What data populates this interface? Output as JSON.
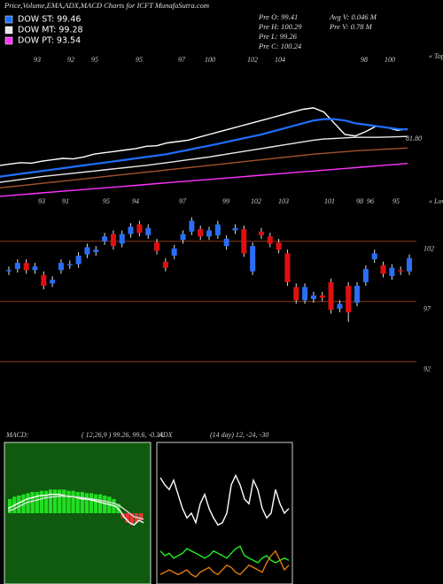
{
  "header": {
    "title": "Price,Volume,EMA,ADX,MACD Charts for ICFT MunafaSutra.com",
    "info": [
      "Pre  O: 99.41",
      "Pre  H: 100.29",
      "Pre  L: 99.26",
      "Pre  C: 100.24",
      "Avg V: 0.046  M",
      "Pre  V: 0.78  M"
    ]
  },
  "chart_data": [
    {
      "type": "line",
      "series": [
        {
          "color": "#ffffff",
          "values": [
            70,
            70.5,
            71,
            70.8,
            71.5,
            72,
            72.5,
            72.3,
            73,
            74,
            74.5,
            75,
            75.5,
            76,
            76.8,
            77,
            78,
            78.5,
            79,
            80,
            81,
            82,
            83,
            84,
            85,
            86,
            87,
            88,
            89,
            90,
            90.5,
            89,
            85,
            81,
            80.5,
            82,
            84,
            83.5,
            82.5,
            83
          ]
        },
        {
          "name": "DOW ST: 99.46",
          "color": "#1f6fff",
          "values": [
            66,
            66.5,
            67,
            67.5,
            68,
            68.5,
            69,
            69.5,
            70,
            70.5,
            71,
            71.5,
            72,
            72.5,
            73,
            73.5,
            74,
            74.8,
            75.5,
            76.3,
            77,
            77.8,
            78.6,
            79.4,
            80.2,
            81,
            82,
            83,
            84,
            85,
            86,
            86.5,
            86.5,
            86,
            85,
            84.5,
            84,
            83.5,
            83,
            82.8
          ]
        },
        {
          "name": "DOW MT: 99.28",
          "color": "#e8e8e8",
          "values": [
            64,
            64.5,
            65,
            65.5,
            66,
            66.4,
            66.8,
            67.2,
            67.6,
            68,
            68.4,
            68.8,
            69.2,
            69.6,
            70,
            70.5,
            71,
            71.5,
            72,
            72.5,
            73,
            73.6,
            74.2,
            74.8,
            75.4,
            76,
            76.6,
            77.2,
            77.8,
            78.4,
            79,
            79.4,
            79.6,
            79.8,
            80,
            80,
            80,
            80.1,
            80.2,
            80.3
          ]
        },
        {
          "color": "#a0522d",
          "values": [
            62,
            62.4,
            62.8,
            63.2,
            63.6,
            64,
            64.4,
            64.8,
            65.2,
            65.6,
            66,
            66.4,
            66.8,
            67.2,
            67.6,
            68,
            68.4,
            68.8,
            69.2,
            69.6,
            70,
            70.4,
            70.8,
            71.2,
            71.6,
            72,
            72.4,
            72.8,
            73.2,
            73.6,
            74,
            74.3,
            74.6,
            74.9,
            75.2,
            75.4,
            75.6,
            75.8,
            76,
            76.2
          ]
        },
        {
          "name": "DOW PT: 93.54",
          "color": "#ff33ff",
          "values": [
            59,
            59.3,
            59.6,
            59.9,
            60.2,
            60.5,
            60.8,
            61.1,
            61.4,
            61.7,
            62,
            62.3,
            62.6,
            62.9,
            63.2,
            63.5,
            63.8,
            64.1,
            64.4,
            64.7,
            65,
            65.3,
            65.6,
            65.9,
            66.2,
            66.5,
            66.8,
            67.1,
            67.4,
            67.7,
            68,
            68.3,
            68.6,
            68.9,
            69.2,
            69.5,
            69.8,
            70.1,
            70.4,
            70.7
          ]
        }
      ],
      "ylim": [
        58,
        110
      ],
      "price_label": "81.80",
      "tops_label": "« Tops",
      "lows_label": "« Lows",
      "top_labels": [
        93,
        92,
        95,
        95,
        97,
        100,
        102,
        104,
        98,
        100
      ],
      "low_labels": [
        93,
        91,
        95,
        94,
        97,
        99,
        102,
        103,
        101,
        98,
        96,
        95
      ]
    },
    {
      "type": "candlestick",
      "open": [
        99.5,
        99.7,
        100.2,
        99.6,
        99.2,
        98.5,
        99.6,
        100.0,
        100.1,
        100.9,
        101.1,
        102.0,
        102.6,
        101.8,
        102.6,
        103.4,
        102.5,
        101.9,
        100.3,
        100.8,
        102.1,
        102.8,
        103.0,
        102.4,
        102.5,
        101.6,
        102.9,
        103.0,
        99.5,
        102.8,
        102.4,
        101.9,
        101.0,
        98.2,
        97.1,
        97.2,
        97.5,
        98.6,
        96.4,
        98.3,
        96.9,
        98.6,
        100.5,
        100.0,
        99.1,
        99.6,
        99.5
      ],
      "high": [
        99.9,
        100.5,
        100.5,
        100.2,
        99.5,
        99.1,
        100.5,
        100.4,
        101.1,
        101.8,
        101.6,
        102.7,
        102.9,
        102.9,
        103.5,
        103.7,
        103.4,
        102.2,
        100.6,
        101.7,
        102.9,
        104.0,
        103.3,
        103.2,
        103.7,
        102.5,
        103.4,
        103.3,
        101.9,
        103.1,
        102.7,
        102.2,
        101.3,
        98.5,
        98.5,
        97.8,
        97.8,
        98.9,
        97.1,
        98.6,
        98.6,
        100.0,
        101.3,
        100.3,
        100.1,
        99.9,
        100.9
      ],
      "low": [
        99.2,
        99.4,
        99.3,
        99.3,
        98.0,
        98.2,
        99.3,
        99.7,
        99.8,
        100.6,
        100.8,
        101.7,
        101.3,
        101.5,
        102.3,
        102.4,
        102.2,
        100.9,
        99.5,
        100.5,
        101.8,
        102.5,
        102.1,
        102.1,
        102.2,
        101.3,
        102.6,
        100.7,
        99.2,
        102.2,
        101.5,
        101.0,
        98.3,
        96.8,
        96.8,
        96.9,
        97.0,
        96.0,
        96.1,
        95.3,
        96.6,
        98.3,
        100.2,
        99.0,
        98.8,
        99.2,
        99.2
      ],
      "close": [
        99.6,
        100.2,
        99.6,
        99.9,
        98.3,
        98.8,
        100.2,
        100.1,
        100.8,
        101.5,
        101.3,
        102.4,
        101.6,
        102.6,
        103.2,
        102.7,
        103.1,
        101.2,
        99.8,
        101.4,
        102.6,
        103.7,
        102.4,
        102.9,
        103.4,
        102.2,
        103.1,
        101.0,
        101.6,
        102.5,
        101.8,
        101.3,
        98.6,
        97.1,
        98.2,
        97.5,
        97.3,
        96.3,
        96.8,
        96.1,
        98.3,
        99.7,
        101.0,
        99.3,
        99.8,
        99.5,
        100.6
      ],
      "up_color": "#2a6ef5",
      "down_color": "#e01010",
      "grid_color": "#8b3a1a",
      "ylim": [
        87.5,
        105.5
      ],
      "yticks": [
        92,
        97,
        102
      ],
      "grid": true
    },
    {
      "type": "macd",
      "title": "MACD:",
      "subtitle": "( 12,26,9 ) 99.26,  99.6,  -0.34",
      "background": "#0f5a0f",
      "bars": [
        0.6,
        0.7,
        0.75,
        0.8,
        0.85,
        0.9,
        0.9,
        0.95,
        0.95,
        1,
        1,
        1,
        1,
        0.95,
        0.95,
        0.9,
        0.9,
        0.85,
        0.85,
        0.8,
        0.8,
        0.75,
        0.7,
        0.6,
        0.4,
        -0.2,
        -0.4,
        -0.5,
        -0.4,
        -0.3
      ],
      "pos_color": "#22dd22",
      "neg_color": "#ee3333",
      "series": [
        {
          "color": "#ffffff",
          "values": [
            0.2,
            0.3,
            0.4,
            0.5,
            0.6,
            0.65,
            0.7,
            0.75,
            0.75,
            0.8,
            0.8,
            0.8,
            0.75,
            0.7,
            0.7,
            0.65,
            0.6,
            0.6,
            0.55,
            0.5,
            0.45,
            0.4,
            0.35,
            0.3,
            0.1,
            -0.2,
            -0.4,
            -0.5,
            -0.3,
            -0.4
          ]
        },
        {
          "color": "#dddddd",
          "values": [
            0.1,
            0.15,
            0.25,
            0.35,
            0.45,
            0.5,
            0.55,
            0.6,
            0.65,
            0.68,
            0.7,
            0.72,
            0.72,
            0.72,
            0.7,
            0.68,
            0.66,
            0.63,
            0.6,
            0.57,
            0.53,
            0.5,
            0.45,
            0.4,
            0.3,
            0.15,
            0,
            -0.15,
            -0.2,
            -0.25
          ]
        }
      ],
      "ylim": [
        -3,
        3
      ]
    },
    {
      "type": "line",
      "title": "ADX",
      "subtitle": "(14 day) 12, -24, -30",
      "series": [
        {
          "color": "#ffffff",
          "values": [
            45,
            42,
            40,
            44,
            38,
            32,
            28,
            30,
            26,
            34,
            38,
            32,
            28,
            25,
            26,
            30,
            42,
            46,
            42,
            36,
            34,
            44,
            40,
            32,
            28,
            30,
            40,
            34,
            30,
            32
          ]
        },
        {
          "color": "#22ee22",
          "values": [
            14,
            12,
            13,
            11,
            12,
            13,
            15,
            14,
            13,
            12,
            11,
            12,
            14,
            13,
            12,
            11,
            13,
            15,
            16,
            12,
            11,
            10,
            9,
            11,
            12,
            10,
            9,
            10,
            11,
            10
          ]
        },
        {
          "color": "#e07a10",
          "values": [
            4,
            5,
            6,
            5,
            4,
            5,
            6,
            4,
            3,
            5,
            6,
            7,
            5,
            4,
            6,
            8,
            7,
            5,
            4,
            6,
            8,
            7,
            6,
            5,
            9,
            12,
            14,
            10,
            6,
            8
          ]
        }
      ],
      "ylim": [
        0,
        60
      ]
    }
  ]
}
